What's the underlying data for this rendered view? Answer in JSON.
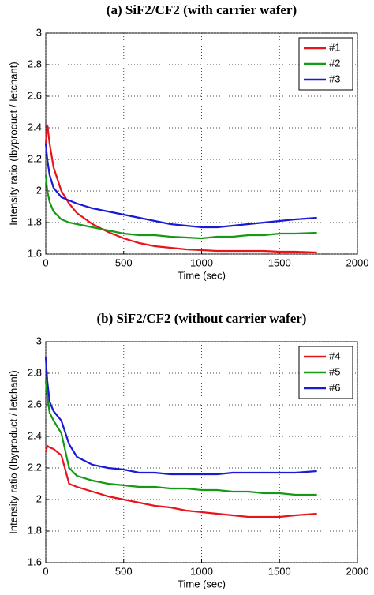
{
  "chart_data": [
    {
      "type": "line",
      "title": "(a) SiF2/CF2 (with carrier wafer)",
      "x_label": "Time (sec)",
      "y_label": "Intensity ratio (Ibyproduct / Ietchant)",
      "x": [
        0,
        10,
        25,
        50,
        100,
        150,
        200,
        300,
        400,
        500,
        600,
        700,
        800,
        900,
        1000,
        1100,
        1200,
        1300,
        1400,
        1500,
        1600,
        1740
      ],
      "series": [
        {
          "name": "#1",
          "color": "#e8141b",
          "values": [
            2.3,
            2.42,
            2.3,
            2.15,
            2.0,
            1.92,
            1.86,
            1.79,
            1.74,
            1.7,
            1.67,
            1.65,
            1.64,
            1.63,
            1.625,
            1.62,
            1.62,
            1.62,
            1.62,
            1.615,
            1.615,
            1.61
          ]
        },
        {
          "name": "#2",
          "color": "#149a14",
          "values": [
            2.1,
            2.0,
            1.93,
            1.87,
            1.82,
            1.8,
            1.79,
            1.77,
            1.75,
            1.73,
            1.72,
            1.72,
            1.71,
            1.705,
            1.7,
            1.71,
            1.71,
            1.72,
            1.72,
            1.73,
            1.73,
            1.735
          ]
        },
        {
          "name": "#3",
          "color": "#1a1ad6",
          "values": [
            2.3,
            2.2,
            2.1,
            2.02,
            1.96,
            1.94,
            1.92,
            1.89,
            1.87,
            1.85,
            1.83,
            1.81,
            1.79,
            1.78,
            1.77,
            1.77,
            1.78,
            1.79,
            1.8,
            1.81,
            1.82,
            1.83
          ]
        }
      ],
      "xlim": [
        0,
        2000
      ],
      "xticks": [
        0,
        500,
        1000,
        1500,
        2000
      ],
      "ylim": [
        1.6,
        3
      ],
      "yticks": [
        1.6,
        1.8,
        2,
        2.2,
        2.4,
        2.6,
        2.8,
        3
      ],
      "grid": true,
      "legend": "top-right"
    },
    {
      "type": "line",
      "title": "(b) SiF2/CF2 (without carrier wafer)",
      "x_label": "Time (sec)",
      "y_label": "Intensity ratio (Ibyproduct / Ietchant)",
      "x": [
        0,
        10,
        25,
        50,
        100,
        150,
        200,
        300,
        400,
        500,
        600,
        700,
        800,
        900,
        1000,
        1100,
        1200,
        1300,
        1400,
        1500,
        1600,
        1740
      ],
      "series": [
        {
          "name": "#4",
          "color": "#e8141b",
          "values": [
            2.3,
            2.34,
            2.33,
            2.32,
            2.28,
            2.1,
            2.08,
            2.05,
            2.02,
            2.0,
            1.98,
            1.96,
            1.95,
            1.93,
            1.92,
            1.91,
            1.9,
            1.89,
            1.89,
            1.89,
            1.9,
            1.91
          ]
        },
        {
          "name": "#5",
          "color": "#149a14",
          "values": [
            2.75,
            2.65,
            2.55,
            2.5,
            2.42,
            2.2,
            2.15,
            2.12,
            2.1,
            2.09,
            2.08,
            2.08,
            2.07,
            2.07,
            2.06,
            2.06,
            2.05,
            2.05,
            2.04,
            2.04,
            2.03,
            2.03
          ]
        },
        {
          "name": "#6",
          "color": "#1a1ad6",
          "values": [
            2.9,
            2.75,
            2.62,
            2.56,
            2.5,
            2.35,
            2.27,
            2.22,
            2.2,
            2.19,
            2.17,
            2.17,
            2.16,
            2.16,
            2.16,
            2.16,
            2.17,
            2.17,
            2.17,
            2.17,
            2.17,
            2.18
          ]
        }
      ],
      "xlim": [
        0,
        2000
      ],
      "xticks": [
        0,
        500,
        1000,
        1500,
        2000
      ],
      "ylim": [
        1.6,
        3
      ],
      "yticks": [
        1.6,
        1.8,
        2,
        2.2,
        2.4,
        2.6,
        2.8,
        3
      ],
      "grid": true,
      "legend": "top-right"
    }
  ]
}
